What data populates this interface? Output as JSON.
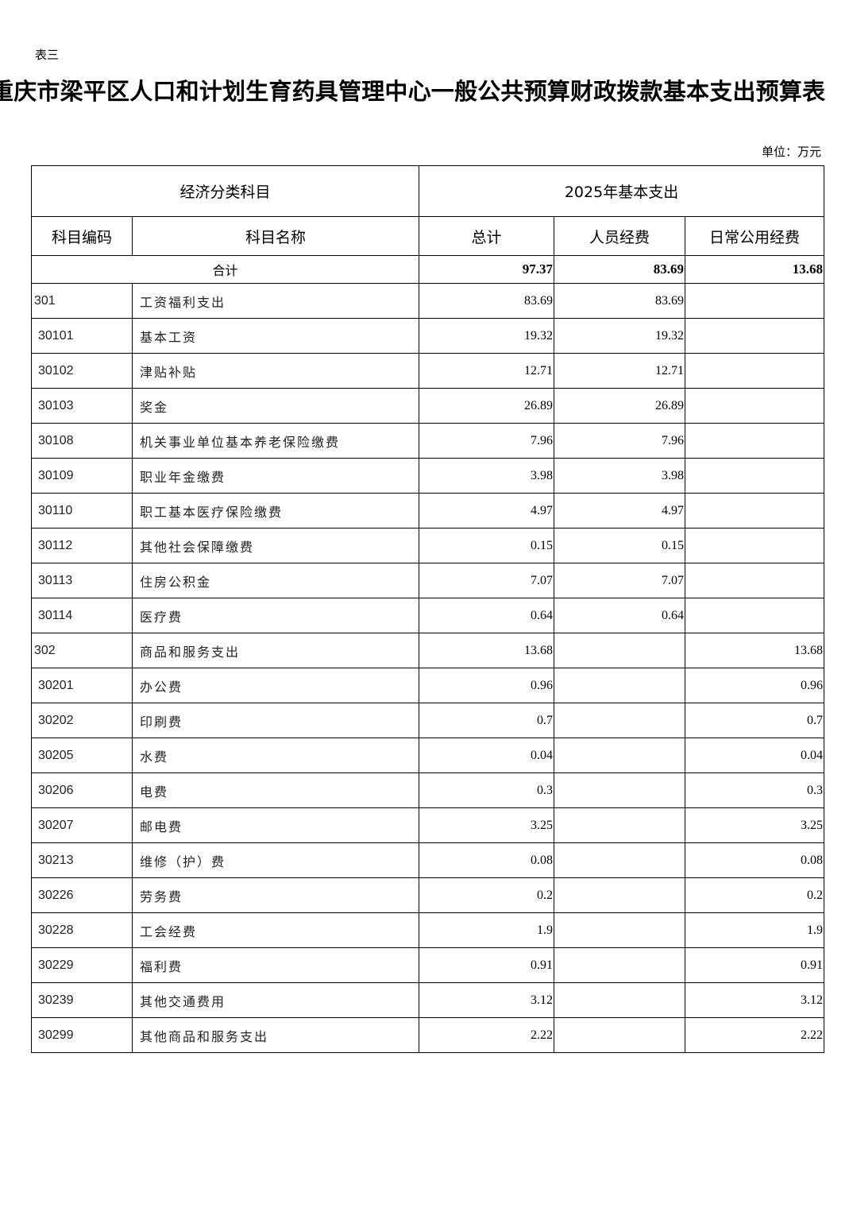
{
  "label": "表三",
  "title": "重庆市梁平区人口和计划生育药具管理中心一般公共预算财政拨款基本支出预算表",
  "unit": "单位：万元",
  "header": {
    "group_left": "经济分类科目",
    "group_right": "2025年基本支出",
    "code": "科目编码",
    "name": "科目名称",
    "total": "总计",
    "personnel": "人员经费",
    "public": "日常公用经费"
  },
  "total_row": {
    "label": "合计",
    "total": "97.37",
    "personnel": "83.69",
    "public": "13.68"
  },
  "rows": [
    {
      "code": "301",
      "name": "工资福利支出",
      "total": "83.69",
      "personnel": "83.69",
      "public": ""
    },
    {
      "code": "30101",
      "name": "基本工资",
      "total": "19.32",
      "personnel": "19.32",
      "public": ""
    },
    {
      "code": "30102",
      "name": "津贴补贴",
      "total": "12.71",
      "personnel": "12.71",
      "public": ""
    },
    {
      "code": "30103",
      "name": "奖金",
      "total": "26.89",
      "personnel": "26.89",
      "public": ""
    },
    {
      "code": "30108",
      "name": "机关事业单位基本养老保险缴费",
      "total": "7.96",
      "personnel": "7.96",
      "public": ""
    },
    {
      "code": "30109",
      "name": "职业年金缴费",
      "total": "3.98",
      "personnel": "3.98",
      "public": ""
    },
    {
      "code": "30110",
      "name": "职工基本医疗保险缴费",
      "total": "4.97",
      "personnel": "4.97",
      "public": ""
    },
    {
      "code": "30112",
      "name": "其他社会保障缴费",
      "total": "0.15",
      "personnel": "0.15",
      "public": ""
    },
    {
      "code": "30113",
      "name": "住房公积金",
      "total": "7.07",
      "personnel": "7.07",
      "public": ""
    },
    {
      "code": "30114",
      "name": "医疗费",
      "total": "0.64",
      "personnel": "0.64",
      "public": ""
    },
    {
      "code": "302",
      "name": "商品和服务支出",
      "total": "13.68",
      "personnel": "",
      "public": "13.68"
    },
    {
      "code": "30201",
      "name": "办公费",
      "total": "0.96",
      "personnel": "",
      "public": "0.96"
    },
    {
      "code": "30202",
      "name": "印刷费",
      "total": "0.7",
      "personnel": "",
      "public": "0.7"
    },
    {
      "code": "30205",
      "name": "水费",
      "total": "0.04",
      "personnel": "",
      "public": "0.04"
    },
    {
      "code": "30206",
      "name": "电费",
      "total": "0.3",
      "personnel": "",
      "public": "0.3"
    },
    {
      "code": "30207",
      "name": "邮电费",
      "total": "3.25",
      "personnel": "",
      "public": "3.25"
    },
    {
      "code": "30213",
      "name": "维修（护）费",
      "total": "0.08",
      "personnel": "",
      "public": "0.08"
    },
    {
      "code": "30226",
      "name": "劳务费",
      "total": "0.2",
      "personnel": "",
      "public": "0.2"
    },
    {
      "code": "30228",
      "name": "工会经费",
      "total": "1.9",
      "personnel": "",
      "public": "1.9"
    },
    {
      "code": "30229",
      "name": "福利费",
      "total": "0.91",
      "personnel": "",
      "public": "0.91"
    },
    {
      "code": "30239",
      "name": "其他交通费用",
      "total": "3.12",
      "personnel": "",
      "public": "3.12"
    },
    {
      "code": "30299",
      "name": "其他商品和服务支出",
      "total": "2.22",
      "personnel": "",
      "public": "2.22"
    }
  ]
}
